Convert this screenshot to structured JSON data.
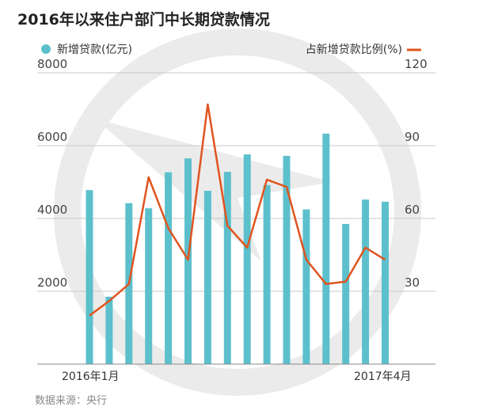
{
  "colors": {
    "bar": "#5cc0cc",
    "line": "#e0541f",
    "grid": "#c9c9c9",
    "watermark": "#ebebeb"
  },
  "chart_data": {
    "type": "bar",
    "title": "2016年以来住户部门中长期贷款情况",
    "source": "数据来源：央行",
    "x": [
      "2016-01",
      "2016-02",
      "2016-03",
      "2016-04",
      "2016-05",
      "2016-06",
      "2016-07",
      "2016-08",
      "2016-09",
      "2016-10",
      "2016-11",
      "2016-12",
      "2017-01",
      "2017-02",
      "2017-03",
      "2017-04"
    ],
    "x_tick_labels": {
      "first": "2016年1月",
      "last": "2017年4月"
    },
    "series": [
      {
        "name": "新增贷款(亿元)",
        "type": "bar",
        "axis": "left",
        "values": [
          4780,
          1850,
          4420,
          4280,
          5270,
          5650,
          4760,
          5280,
          5760,
          4920,
          5720,
          4250,
          6330,
          3850,
          4520,
          4460
        ]
      },
      {
        "name": "占新增贷款比例(%)",
        "type": "line",
        "axis": "right",
        "values": [
          20,
          26,
          33,
          77,
          56,
          43,
          107,
          57,
          48,
          76,
          73,
          43,
          33,
          34,
          48,
          43
        ]
      }
    ],
    "y_left": {
      "ticks": [
        2000,
        4000,
        6000,
        8000
      ],
      "ylim": [
        0,
        8000
      ]
    },
    "y_right": {
      "ticks": [
        30,
        60,
        90,
        120
      ],
      "ylim": [
        0,
        120
      ]
    },
    "grid": "horizontal"
  }
}
